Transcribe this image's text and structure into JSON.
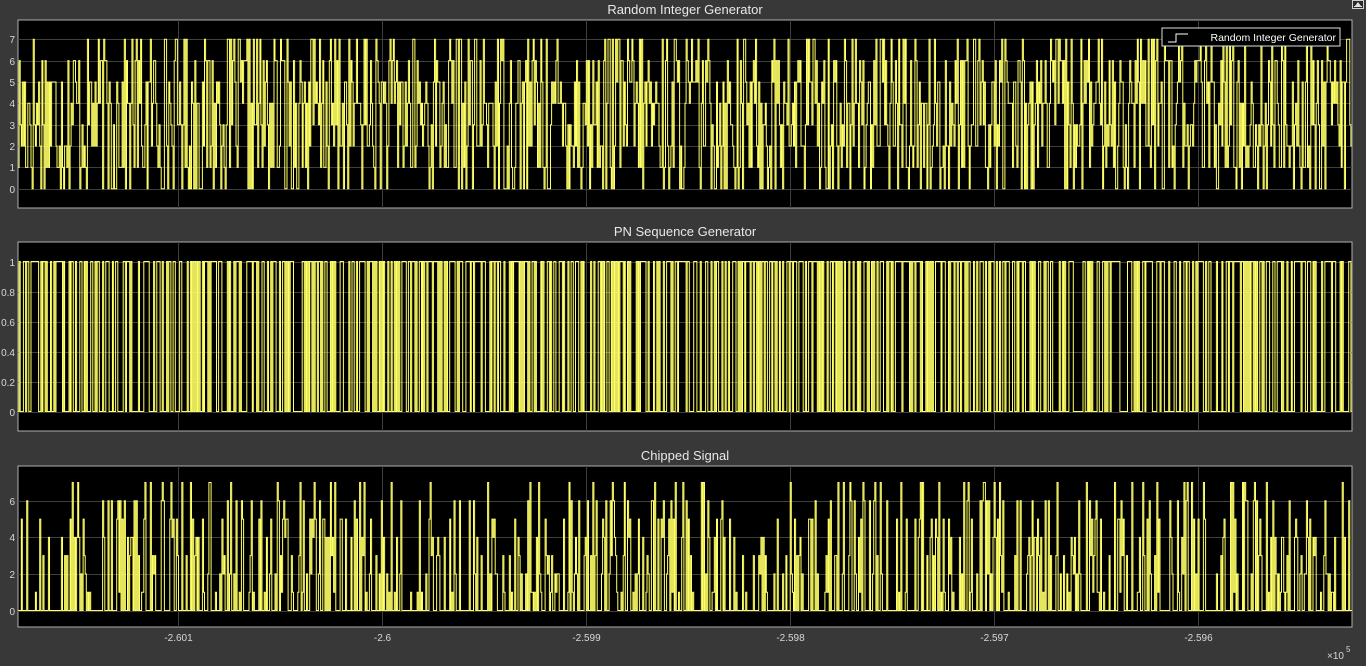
{
  "colors": {
    "figure_bg": "#383838",
    "axes_bg": "#000000",
    "axes_border": "#b0b0b0",
    "grid": "#3f3f3f",
    "signal": "#ffff66",
    "text": "#e8e8e8"
  },
  "toolbar": {
    "undock_icon": "undock-icon"
  },
  "x_exponent": {
    "base": "×10",
    "power": "5"
  },
  "chart_data": [
    {
      "type": "line",
      "style": "stairs",
      "title": "Random Integer Generator",
      "legend": {
        "entries": [
          "Random Integer Generator"
        ],
        "placement": "top-right"
      },
      "xlim": [
        -260170,
        -259555
      ],
      "ylim": [
        -0.9,
        7.9
      ],
      "yticks": [
        "0",
        "1",
        "2",
        "3",
        "4",
        "5",
        "6",
        "7"
      ],
      "grid": true,
      "series": [
        {
          "name": "Random Integer Generator",
          "levels": [
            0,
            1,
            2,
            3,
            4,
            5,
            6,
            7
          ],
          "sample_period": 0.5,
          "seed": 17
        }
      ]
    },
    {
      "type": "line",
      "style": "stairs",
      "title": "PN Sequence Generator",
      "xlim": [
        -260170,
        -259555
      ],
      "ylim": [
        -0.13,
        1.13
      ],
      "yticks": [
        "0",
        "0.2",
        "0.4",
        "0.6",
        "0.8",
        "1"
      ],
      "grid": true,
      "series": [
        {
          "levels": [
            0,
            1
          ],
          "sample_period": 0.5,
          "seed": 91
        }
      ]
    },
    {
      "type": "line",
      "style": "stairs",
      "title": "Chipped Signal",
      "xlim": [
        -260170,
        -259555
      ],
      "ylim": [
        -0.9,
        7.9
      ],
      "yticks": [
        "0",
        "2",
        "4",
        "6"
      ],
      "xticks": [
        "-2.601",
        "-2.6",
        "-2.599",
        "-2.598",
        "-2.597",
        "-2.596"
      ],
      "grid": true,
      "series": [
        {
          "levels": [
            0,
            1,
            2,
            3,
            4,
            5,
            6,
            7
          ],
          "sample_period": 0.5,
          "seed": 53
        }
      ]
    }
  ]
}
